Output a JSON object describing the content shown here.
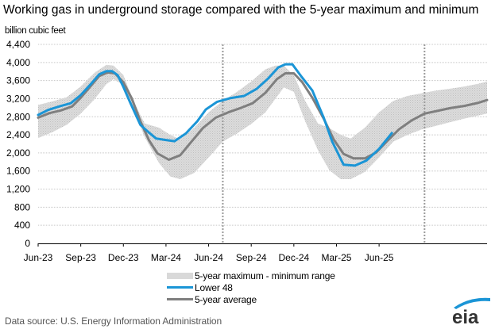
{
  "chart_data": {
    "type": "line",
    "title": "Working gas in underground  storage compared with the 5-year maximum and minimum",
    "ylabel": "billion cubic feet",
    "xlabel": "",
    "ylim": [
      0,
      4400
    ],
    "yticks": [
      0,
      400,
      800,
      1200,
      1600,
      2000,
      2400,
      2800,
      3200,
      3600,
      4000,
      4400
    ],
    "ytick_labels": [
      "0",
      "400",
      "800",
      "1,200",
      "1,600",
      "2,000",
      "2,400",
      "2,800",
      "3,200",
      "3,600",
      "4,000",
      "4,400"
    ],
    "x_unit": "months since Jun-2023",
    "xlim": [
      0,
      31.6
    ],
    "xticks": [
      0,
      3,
      6,
      9,
      12,
      15,
      18,
      21,
      24
    ],
    "xtick_labels": [
      "Jun-23",
      "Sep-23",
      "Dec-23",
      "Mar-24",
      "Jun-24",
      "Sep-24",
      "Dec-24",
      "Mar-25",
      "Jun-25"
    ],
    "grid": true,
    "vertical_markers": [
      13.0,
      27.2
    ],
    "legend_position": "bottom-center",
    "series": [
      {
        "name": "5-year maximum - minimum range",
        "kind": "band",
        "color": "#d9d9d9",
        "x": [
          0,
          1,
          2,
          3,
          4,
          4.8,
          5.3,
          6,
          6.7,
          7.5,
          8.5,
          9.3,
          10,
          11,
          12,
          13,
          14,
          15,
          16,
          16.7,
          17.3,
          18,
          18.8,
          19.7,
          20.5,
          21.3,
          22,
          23,
          24,
          25,
          26,
          27,
          28,
          29,
          30,
          31,
          31.6
        ],
        "upper": [
          3060,
          3140,
          3230,
          3470,
          3780,
          3950,
          3930,
          3720,
          3150,
          2650,
          2560,
          2400,
          2300,
          2560,
          2900,
          3150,
          3350,
          3580,
          3850,
          3930,
          3930,
          3720,
          3150,
          2650,
          2550,
          2400,
          2320,
          2560,
          2900,
          3150,
          3260,
          3320,
          3380,
          3420,
          3470,
          3530,
          3580
        ],
        "lower": [
          2330,
          2460,
          2620,
          2870,
          3200,
          3520,
          3630,
          3500,
          2960,
          2350,
          1780,
          1480,
          1420,
          1560,
          1900,
          2250,
          2430,
          2640,
          2900,
          3200,
          3450,
          3350,
          2700,
          2060,
          1620,
          1420,
          1420,
          1580,
          1900,
          2250,
          2400,
          2520,
          2600,
          2680,
          2760,
          2830,
          2870
        ]
      },
      {
        "name": "Lower 48",
        "kind": "line",
        "color": "#1b95d6",
        "x": [
          0,
          0.7,
          1.5,
          2.3,
          3,
          3.7,
          4.3,
          4.8,
          5.2,
          5.6,
          6,
          6.5,
          7.2,
          7.8,
          8.3,
          8.9,
          9.6,
          10.4,
          11.2,
          11.8,
          12.6,
          13.5,
          14.5,
          15.4,
          16.2,
          16.9,
          17.4,
          17.9,
          18.5,
          19.3,
          20.1,
          20.7,
          21.5,
          22.3,
          23.1,
          24,
          24.9
        ],
        "values": [
          2840,
          2950,
          3030,
          3100,
          3280,
          3520,
          3740,
          3810,
          3810,
          3720,
          3460,
          3100,
          2620,
          2450,
          2320,
          2290,
          2260,
          2430,
          2700,
          2960,
          3130,
          3210,
          3260,
          3420,
          3650,
          3890,
          3960,
          3960,
          3700,
          3380,
          2780,
          2250,
          1740,
          1720,
          1830,
          2090,
          2440
        ]
      },
      {
        "name": "5-year average",
        "kind": "line",
        "color": "#7f7f7f",
        "x": [
          0,
          0.8,
          1.6,
          2.4,
          3,
          3.7,
          4.3,
          4.9,
          5.4,
          6,
          6.6,
          7.2,
          7.8,
          8.4,
          9.2,
          10,
          10.8,
          11.6,
          12.5,
          13.4,
          14.3,
          15.1,
          16,
          16.8,
          17.4,
          18,
          18.6,
          19.3,
          20.1,
          20.8,
          21.5,
          22.2,
          23,
          23.8,
          24.6,
          25.4,
          26.3,
          27.2,
          28.1,
          29,
          30,
          31,
          31.6
        ],
        "values": [
          2780,
          2880,
          2940,
          3030,
          3220,
          3480,
          3700,
          3780,
          3760,
          3560,
          3200,
          2700,
          2280,
          1990,
          1850,
          1950,
          2250,
          2550,
          2780,
          2900,
          3000,
          3100,
          3330,
          3630,
          3760,
          3760,
          3560,
          3220,
          2760,
          2300,
          1980,
          1880,
          1880,
          2010,
          2270,
          2520,
          2720,
          2870,
          2930,
          2990,
          3040,
          3110,
          3170
        ]
      }
    ]
  },
  "legend": {
    "items": [
      {
        "label": "5-year maximum - minimum range"
      },
      {
        "label": "Lower 48"
      },
      {
        "label": "5-year average"
      }
    ]
  },
  "footer": {
    "source": "Data source:  U.S. Energy Information Administration",
    "logo_text": "eia"
  }
}
